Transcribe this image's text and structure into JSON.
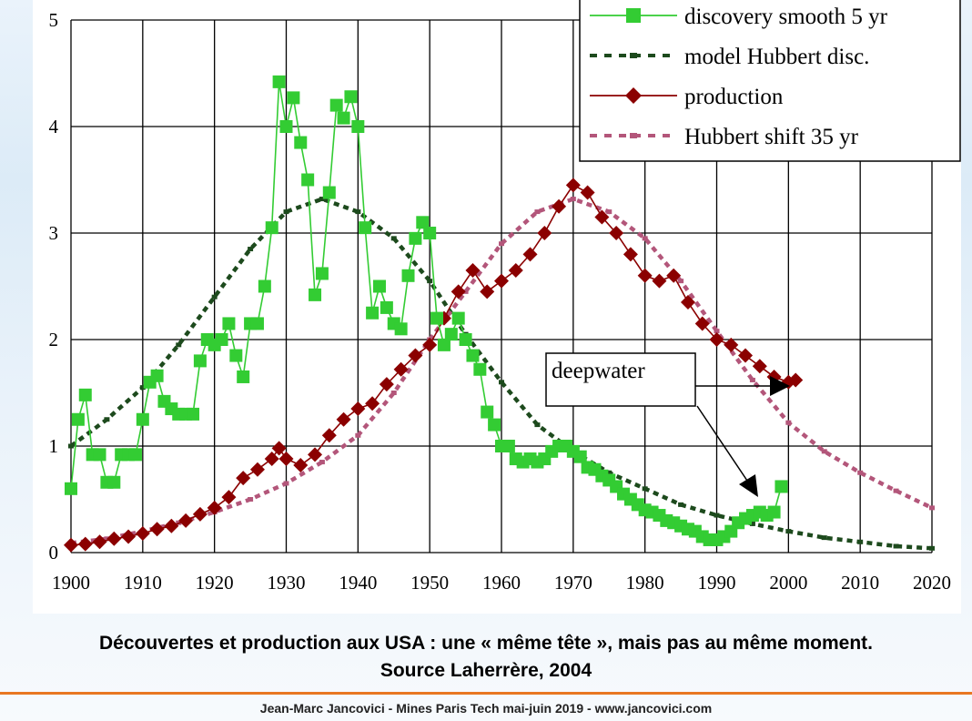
{
  "chart_data": {
    "type": "line",
    "title": "",
    "xlabel": "",
    "ylabel": "",
    "xlim": [
      1900,
      2020
    ],
    "ylim": [
      0,
      5
    ],
    "x_ticks": [
      1900,
      1910,
      1920,
      1930,
      1940,
      1950,
      1960,
      1970,
      1980,
      1990,
      2000,
      2010,
      2020
    ],
    "y_ticks": [
      0,
      1,
      2,
      3,
      4,
      5
    ],
    "grid": true,
    "legend_position": "top-right",
    "series": [
      {
        "name": "discovery smooth 5 yr",
        "color": "#33cc33",
        "marker": "square",
        "x": [
          1900,
          1901,
          1902,
          1903,
          1904,
          1905,
          1906,
          1907,
          1908,
          1909,
          1910,
          1911,
          1912,
          1913,
          1914,
          1915,
          1916,
          1917,
          1918,
          1919,
          1920,
          1921,
          1922,
          1923,
          1924,
          1925,
          1926,
          1927,
          1928,
          1929,
          1930,
          1931,
          1932,
          1933,
          1934,
          1935,
          1936,
          1937,
          1938,
          1939,
          1940,
          1941,
          1942,
          1943,
          1944,
          1945,
          1946,
          1947,
          1948,
          1949,
          1950,
          1951,
          1952,
          1953,
          1954,
          1955,
          1956,
          1957,
          1958,
          1959,
          1960,
          1961,
          1962,
          1963,
          1964,
          1965,
          1966,
          1967,
          1968,
          1969,
          1970,
          1971,
          1972,
          1973,
          1974,
          1975,
          1976,
          1977,
          1978,
          1979,
          1980,
          1981,
          1982,
          1983,
          1984,
          1985,
          1986,
          1987,
          1988,
          1989,
          1990,
          1991,
          1992,
          1993,
          1994,
          1995,
          1996,
          1997,
          1998,
          1999
        ],
        "values": [
          0.6,
          1.25,
          1.48,
          0.92,
          0.92,
          0.66,
          0.66,
          0.92,
          0.92,
          0.92,
          1.25,
          1.6,
          1.66,
          1.42,
          1.35,
          1.3,
          1.3,
          1.3,
          1.8,
          2.0,
          1.95,
          2.0,
          2.15,
          1.85,
          1.65,
          2.15,
          2.15,
          2.5,
          3.05,
          4.42,
          4.0,
          4.27,
          3.85,
          3.5,
          2.42,
          2.62,
          3.38,
          4.2,
          4.08,
          4.28,
          4.0,
          3.05,
          2.25,
          2.5,
          2.3,
          2.15,
          2.1,
          2.6,
          2.95,
          3.1,
          3.0,
          2.2,
          1.95,
          2.05,
          2.2,
          2.0,
          1.85,
          1.72,
          1.32,
          1.2,
          1.0,
          1.0,
          0.88,
          0.85,
          0.88,
          0.85,
          0.88,
          0.95,
          1.0,
          1.0,
          0.95,
          0.9,
          0.8,
          0.78,
          0.72,
          0.68,
          0.62,
          0.55,
          0.5,
          0.45,
          0.4,
          0.38,
          0.35,
          0.3,
          0.28,
          0.25,
          0.22,
          0.2,
          0.15,
          0.12,
          0.12,
          0.15,
          0.2,
          0.28,
          0.32,
          0.35,
          0.38,
          0.35,
          0.38,
          0.62
        ]
      },
      {
        "name": "model Hubbert disc.",
        "color": "#1d4a1d",
        "marker": "dash",
        "x": [
          1900,
          1905,
          1910,
          1915,
          1920,
          1925,
          1930,
          1935,
          1940,
          1945,
          1950,
          1955,
          1960,
          1965,
          1970,
          1975,
          1980,
          1985,
          1990,
          1995,
          2000,
          2005,
          2010,
          2015,
          2020
        ],
        "values": [
          1.0,
          1.25,
          1.55,
          1.95,
          2.4,
          2.85,
          3.2,
          3.32,
          3.2,
          2.95,
          2.55,
          2.05,
          1.6,
          1.2,
          0.95,
          0.75,
          0.6,
          0.45,
          0.35,
          0.27,
          0.2,
          0.14,
          0.1,
          0.06,
          0.04
        ]
      },
      {
        "name": "production",
        "color": "#8b0000",
        "marker": "diamond",
        "x": [
          1900,
          1902,
          1904,
          1906,
          1908,
          1910,
          1912,
          1914,
          1916,
          1918,
          1920,
          1922,
          1924,
          1926,
          1928,
          1929,
          1930,
          1932,
          1934,
          1936,
          1938,
          1940,
          1942,
          1944,
          1946,
          1948,
          1950,
          1952,
          1954,
          1956,
          1958,
          1960,
          1962,
          1964,
          1966,
          1968,
          1970,
          1972,
          1974,
          1976,
          1978,
          1980,
          1982,
          1984,
          1986,
          1988,
          1990,
          1992,
          1994,
          1996,
          1998,
          2000,
          2001
        ],
        "values": [
          0.07,
          0.08,
          0.1,
          0.13,
          0.15,
          0.18,
          0.22,
          0.25,
          0.3,
          0.36,
          0.42,
          0.52,
          0.7,
          0.78,
          0.88,
          0.98,
          0.88,
          0.82,
          0.92,
          1.1,
          1.25,
          1.35,
          1.4,
          1.58,
          1.72,
          1.85,
          1.95,
          2.2,
          2.45,
          2.65,
          2.45,
          2.55,
          2.65,
          2.8,
          3.0,
          3.25,
          3.45,
          3.38,
          3.15,
          3.0,
          2.8,
          2.6,
          2.55,
          2.6,
          2.35,
          2.15,
          2.0,
          1.95,
          1.85,
          1.75,
          1.65,
          1.6,
          1.62
        ]
      },
      {
        "name": "Hubbert shift 35 yr",
        "color": "#b3567a",
        "marker": "dash",
        "x": [
          1900,
          1905,
          1910,
          1915,
          1920,
          1925,
          1930,
          1935,
          1940,
          1945,
          1950,
          1955,
          1960,
          1965,
          1970,
          1975,
          1980,
          1985,
          1990,
          1995,
          2000,
          2005,
          2010,
          2015,
          2020
        ],
        "values": [
          0.09,
          0.13,
          0.2,
          0.28,
          0.38,
          0.5,
          0.65,
          0.85,
          1.1,
          1.5,
          2.0,
          2.45,
          2.9,
          3.2,
          3.32,
          3.2,
          2.95,
          2.55,
          2.08,
          1.62,
          1.22,
          0.95,
          0.75,
          0.58,
          0.42
        ]
      }
    ],
    "annotation": {
      "text": "deepwater"
    }
  },
  "caption": {
    "line1": "Découvertes et production aux USA : une « même tête », mais pas au même moment.",
    "line2": "Source Laherrère, 2004"
  },
  "footer": {
    "text": "Jean-Marc Jancovici - Mines Paris Tech mai-juin 2019 - www.jancovici.com"
  }
}
